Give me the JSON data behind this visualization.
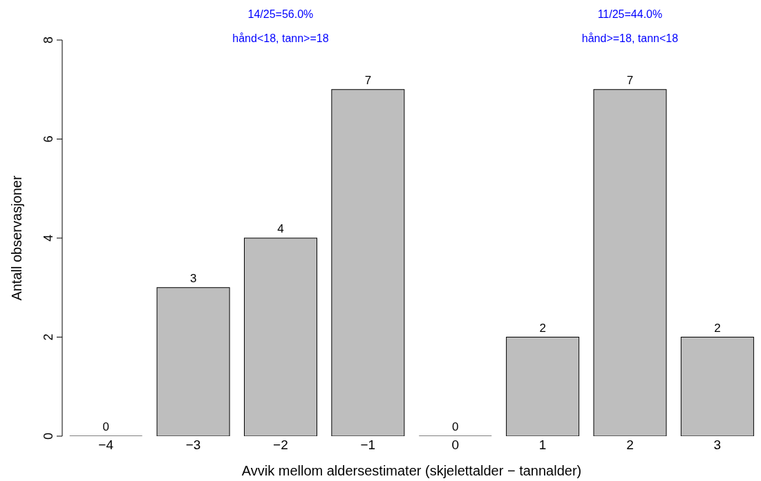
{
  "chart_data": {
    "type": "bar",
    "xlabel": "Avvik mellom aldersestimater (skjelettalder − tannalder)",
    "ylabel": "Antall observasjoner",
    "categories": [
      "−4",
      "−3",
      "−2",
      "−1",
      "0",
      "1",
      "2",
      "3"
    ],
    "values": [
      0,
      3,
      4,
      7,
      0,
      2,
      7,
      2
    ],
    "color": "#bebebe",
    "data_labels": true,
    "ylim": [
      0,
      8
    ],
    "yticks": [
      0,
      2,
      4,
      6,
      8
    ],
    "grid": false,
    "legend": false,
    "annotations": [
      "14/25=56.0%",
      "hånd<18, tann>=18",
      "11/25=44.0%",
      "hånd>=18, tann<18"
    ]
  }
}
